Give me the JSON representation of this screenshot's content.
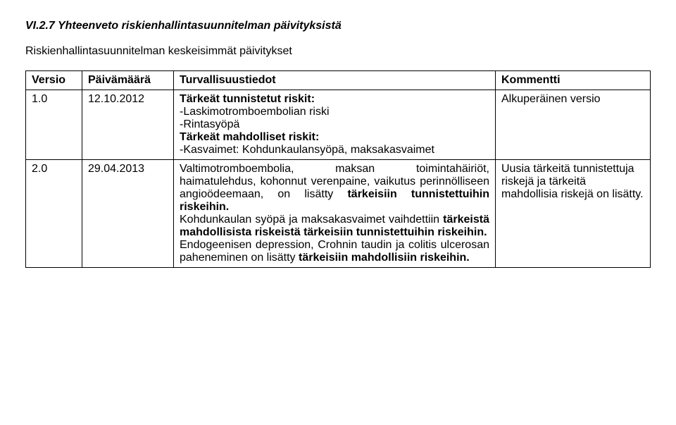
{
  "heading": "VI.2.7 Yhteenveto riskienhallintasuunnitelman päivityksistä",
  "subheading": "Riskienhallintasuunnitelman keskeisimmät päivitykset",
  "table": {
    "columns": [
      "Versio",
      "Päivämäärä",
      "Turvallisuustiedot",
      "Kommentti"
    ],
    "rows": [
      {
        "versio": "1.0",
        "paivamaara": "12.10.2012",
        "turva": {
          "line1": "Tärkeät tunnistetut riskit:",
          "line2": "-Laskimotromboembolian riski",
          "line3": "-Rintasyöpä",
          "line4": "Tärkeät mahdolliset riskit:",
          "line5": "-Kasvaimet: Kohdunkaulansyöpä, maksakasvaimet"
        },
        "kommentti": "Alkuperäinen versio"
      },
      {
        "versio": "2.0",
        "paivamaara": "29.04.2013",
        "turva": {
          "p1_pre": "Valtimotromboembolia, maksan toimintahäiriöt, haimatulehdus, kohonnut verenpaine, vaikutus perinnölliseen angioödeemaan, on lisätty ",
          "p1_bold1": "tärkeisiin tunnistettuihin riskeihin.",
          "p2_pre": "Kohdunkaulan syöpä ja maksakasvaimet vaihdettiin ",
          "p2_bold1": "tärkeistä mahdollisista riskeistä tärkeisiin tunnistettuihin riskeihin.",
          "p3_pre": "Endogeenisen depression, Crohnin taudin ja colitis ulcerosan paheneminen on lisätty ",
          "p3_bold1": "tärkeisiin mahdollisiin riskeihin."
        },
        "kommentti": "Uusia tärkeitä tunnistettuja riskejä ja tärkeitä mahdollisia riskejä on lisätty."
      }
    ]
  }
}
